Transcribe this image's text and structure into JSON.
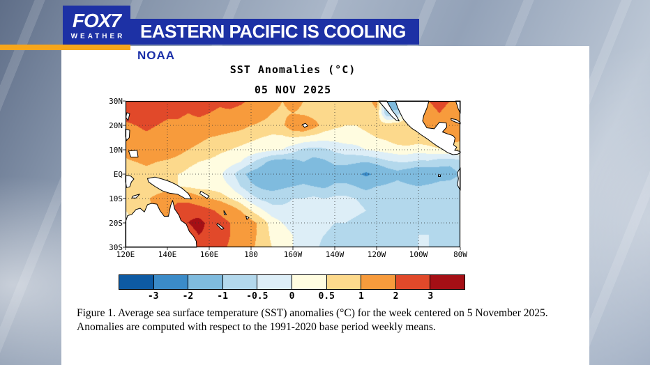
{
  "header": {
    "station_name": "FOX7",
    "station_sub": "WEATHER",
    "banner_title": "EASTERN PACIFIC IS COOLING",
    "brand_blue": "#1d31a5",
    "accent_yellow": "#f7a61b"
  },
  "card": {
    "source_label": "NOAA",
    "caption": "Figure 1. Average sea surface temperature (SST) anomalies (°C) for the week centered on 5 November 2025.  Anomalies are computed with respect to the 1991-2020 base period weekly means."
  },
  "chart_data": {
    "type": "heatmap",
    "title": "SST Anomalies (°C)",
    "date_label": "05 NOV 2025",
    "x_ticks": [
      "120E",
      "140E",
      "160E",
      "180",
      "160W",
      "140W",
      "120W",
      "100W",
      "80W"
    ],
    "y_ticks": [
      "30N",
      "20N",
      "10N",
      "EQ",
      "10S",
      "20S",
      "30S"
    ],
    "lon_ticks": [
      120,
      140,
      160,
      180,
      200,
      220,
      240,
      260,
      280
    ],
    "lat_ticks": [
      30,
      20,
      10,
      0,
      -10,
      -20,
      -30
    ],
    "lon_range": [
      120,
      280
    ],
    "lat_range": [
      -30,
      30
    ],
    "colorbar": {
      "levels": [
        -3,
        -2,
        -1,
        -0.5,
        0,
        0.5,
        1,
        2,
        3
      ],
      "labels": [
        "-3",
        "-2",
        "-1",
        "-0.5",
        "0",
        "0.5",
        "1",
        "2",
        "3"
      ],
      "colors": [
        "#0d5aa3",
        "#3b8bc8",
        "#7fbbde",
        "#b3d8ec",
        "#ddeef7",
        "#fffce0",
        "#fcd98c",
        "#f79b3c",
        "#e1492a",
        "#a50f15"
      ]
    },
    "grid": {
      "lon_start": 120,
      "lon_step": 5,
      "lat_start": 30,
      "lat_step": -5,
      "values": [
        [
          2.6,
          2.8,
          2.8,
          2.6,
          2.4,
          2.6,
          2.4,
          2.6,
          2.4,
          2.2,
          2.4,
          2.2,
          1.8,
          1.5,
          1.2,
          1.0,
          1.2,
          1.0,
          0.8,
          0.8,
          1.0,
          0.8,
          0.6,
          0.8,
          1.2,
          -1.2,
          -1.5,
          0.8,
          1.2,
          2.0,
          2.2,
          2.0,
          1.8
        ],
        [
          2.4,
          2.6,
          2.6,
          2.4,
          2.2,
          2.2,
          2.0,
          2.2,
          2.0,
          1.8,
          1.8,
          1.6,
          1.4,
          1.2,
          1.0,
          0.9,
          1.0,
          0.9,
          0.8,
          0.7,
          0.8,
          0.7,
          0.6,
          0.7,
          0.9,
          -1.0,
          -0.8,
          0.8,
          1.0,
          1.8,
          2.0,
          1.8,
          1.6
        ],
        [
          1.8,
          2.0,
          2.2,
          2.0,
          1.8,
          1.8,
          1.6,
          1.6,
          1.5,
          1.4,
          1.3,
          1.2,
          1.0,
          0.9,
          0.8,
          0.9,
          1.4,
          1.6,
          1.2,
          0.8,
          0.6,
          0.5,
          0.5,
          0.6,
          0.7,
          0.8,
          0.9,
          0.8,
          0.8,
          1.2,
          1.4,
          1.4,
          1.3
        ],
        [
          1.5,
          1.6,
          1.8,
          1.6,
          1.5,
          1.4,
          1.2,
          1.1,
          1.0,
          0.9,
          0.8,
          0.7,
          0.6,
          0.5,
          0.4,
          0.4,
          0.5,
          0.4,
          0.3,
          0.2,
          0.2,
          0.3,
          0.3,
          0.4,
          0.5,
          0.6,
          0.8,
          0.9,
          0.8,
          0.9,
          1.2,
          1.3,
          1.2
        ],
        [
          1.2,
          1.4,
          1.6,
          1.5,
          1.4,
          1.2,
          1.0,
          0.9,
          0.8,
          0.6,
          0.5,
          0.4,
          0.3,
          0.2,
          0.1,
          0.0,
          -0.3,
          -0.6,
          -0.7,
          -0.6,
          -0.4,
          -0.3,
          -0.2,
          0.0,
          0.1,
          0.2,
          0.3,
          0.3,
          0.2,
          0.3,
          0.4,
          0.5,
          0.6
        ],
        [
          0.9,
          1.0,
          1.1,
          1.0,
          0.9,
          0.8,
          0.6,
          0.5,
          0.4,
          0.3,
          0.2,
          0.0,
          -0.4,
          -0.8,
          -1.2,
          -1.3,
          -1.2,
          -1.0,
          -1.2,
          -1.1,
          -0.9,
          -0.8,
          -0.9,
          -1.0,
          -0.8,
          -0.6,
          -0.5,
          -0.5,
          -0.6,
          -0.6,
          -0.8,
          -0.9,
          -0.7
        ],
        [
          0.6,
          0.7,
          0.8,
          0.7,
          0.6,
          0.5,
          0.4,
          0.3,
          0.2,
          0.1,
          -0.3,
          -0.8,
          -1.2,
          -1.4,
          -1.6,
          -1.8,
          -1.6,
          -1.4,
          -1.6,
          -1.5,
          -1.3,
          -1.5,
          -1.8,
          -2.2,
          -1.8,
          -1.4,
          -1.2,
          -1.4,
          -1.6,
          -1.5,
          -1.3,
          -1.2,
          -1.0
        ],
        [
          0.5,
          0.6,
          0.7,
          0.6,
          0.6,
          0.5,
          0.4,
          0.3,
          0.3,
          0.2,
          0.0,
          -0.5,
          -0.9,
          -1.1,
          -1.2,
          -1.1,
          -1.0,
          -0.9,
          -1.0,
          -1.1,
          -0.9,
          -0.8,
          -1.0,
          -1.2,
          -1.0,
          -0.9,
          -0.8,
          -0.9,
          -1.0,
          -0.9,
          -0.8,
          -0.8,
          -0.7
        ],
        [
          0.6,
          0.7,
          0.9,
          1.2,
          1.6,
          1.8,
          1.6,
          1.2,
          1.0,
          0.8,
          0.5,
          0.2,
          -0.3,
          -0.6,
          -0.7,
          -0.6,
          -0.5,
          -0.5,
          -0.4,
          -0.5,
          -0.4,
          -0.4,
          -0.5,
          -0.6,
          -0.5,
          -0.5,
          -0.6,
          -0.7,
          -0.7,
          -0.6,
          -0.7,
          -0.7,
          -0.6
        ],
        [
          0.5,
          0.6,
          0.8,
          1.2,
          1.8,
          2.4,
          2.8,
          2.6,
          2.2,
          1.8,
          1.4,
          1.0,
          0.5,
          0.1,
          -0.3,
          -0.4,
          -0.4,
          -0.3,
          -0.3,
          -0.2,
          -0.3,
          -0.3,
          -0.4,
          -0.5,
          -0.6,
          -0.6,
          -0.7,
          -0.7,
          -0.6,
          -0.6,
          -0.7,
          -0.8,
          -0.7
        ],
        [
          0.4,
          0.5,
          0.7,
          1.0,
          1.5,
          2.2,
          3.0,
          3.3,
          2.8,
          2.4,
          2.0,
          1.6,
          1.2,
          0.8,
          0.3,
          0.0,
          -0.2,
          -0.3,
          -0.3,
          -0.4,
          -0.5,
          -0.5,
          -0.6,
          -0.7,
          -0.7,
          -0.8,
          -0.8,
          -0.7,
          -0.6,
          -0.6,
          -0.6,
          -0.7,
          -0.6
        ],
        [
          0.4,
          0.4,
          0.6,
          0.8,
          1.2,
          1.8,
          2.6,
          3.0,
          2.8,
          2.4,
          2.0,
          1.6,
          1.2,
          0.8,
          0.4,
          0.2,
          0.0,
          -0.2,
          -0.4,
          -0.5,
          -0.6,
          -0.6,
          -0.7,
          -0.8,
          -0.8,
          -0.8,
          -0.7,
          -0.6,
          -0.5,
          -0.5,
          -0.6,
          -0.6,
          -0.5
        ],
        [
          0.3,
          0.4,
          0.5,
          0.7,
          1.0,
          1.4,
          2.0,
          2.4,
          2.4,
          2.2,
          1.9,
          1.5,
          1.1,
          0.8,
          0.5,
          0.2,
          0.0,
          -0.2,
          -0.4,
          -0.6,
          -0.7,
          -0.8,
          -0.8,
          -0.9,
          -0.8,
          -0.8,
          -0.7,
          -0.6,
          -0.5,
          -0.5,
          -0.6,
          -0.6,
          -0.5
        ]
      ]
    },
    "land": [
      {
        "name": "australia",
        "pts": [
          [
            120,
            -19.5
          ],
          [
            121,
            -17
          ],
          [
            123,
            -16.5
          ],
          [
            125,
            -14.5
          ],
          [
            127,
            -14
          ],
          [
            129,
            -15.5
          ],
          [
            130.5,
            -12.5
          ],
          [
            132.5,
            -12
          ],
          [
            135,
            -12.3
          ],
          [
            136.5,
            -15
          ],
          [
            138.5,
            -17.3
          ],
          [
            140.5,
            -17.3
          ],
          [
            141.5,
            -13
          ],
          [
            142.5,
            -10.8
          ],
          [
            143.5,
            -14.3
          ],
          [
            145.5,
            -16.8
          ],
          [
            146.5,
            -19
          ],
          [
            149,
            -20.5
          ],
          [
            150.5,
            -23.5
          ],
          [
            152.5,
            -25.5
          ],
          [
            153.8,
            -27.5
          ],
          [
            154,
            -30
          ],
          [
            120,
            -30
          ]
        ]
      },
      {
        "name": "new-guinea",
        "pts": [
          [
            130.5,
            -1.8
          ],
          [
            134,
            -1.2
          ],
          [
            137.5,
            -2
          ],
          [
            141,
            -3
          ],
          [
            144,
            -4.2
          ],
          [
            147,
            -5.8
          ],
          [
            150,
            -8
          ],
          [
            151.5,
            -10.2
          ],
          [
            148.5,
            -10
          ],
          [
            145,
            -8.3
          ],
          [
            141,
            -7.8
          ],
          [
            137.5,
            -6.8
          ],
          [
            134,
            -5
          ],
          [
            131,
            -3.2
          ]
        ]
      },
      {
        "name": "sulawesi",
        "pts": [
          [
            120,
            -0.5
          ],
          [
            122.5,
            -0.8
          ],
          [
            124,
            -2
          ],
          [
            122.8,
            -3.2
          ],
          [
            122,
            -5.2
          ],
          [
            120.5,
            -5.5
          ],
          [
            120,
            -3
          ]
        ]
      },
      {
        "name": "timor",
        "pts": [
          [
            123.5,
            -9
          ],
          [
            126.8,
            -8.2
          ],
          [
            125,
            -9.8
          ],
          [
            123,
            -9.8
          ]
        ]
      },
      {
        "name": "philippines-luzon",
        "pts": [
          [
            120,
            18.5
          ],
          [
            122,
            18
          ],
          [
            121.8,
            15
          ],
          [
            120.5,
            13.8
          ],
          [
            120,
            15.5
          ]
        ]
      },
      {
        "name": "philippines-mindanao",
        "pts": [
          [
            121.5,
            9.5
          ],
          [
            125.5,
            9.8
          ],
          [
            126,
            7
          ],
          [
            122.5,
            7
          ]
        ]
      },
      {
        "name": "taiwan",
        "pts": [
          [
            120.6,
            25.2
          ],
          [
            122,
            24.8
          ],
          [
            121.2,
            22
          ],
          [
            120.2,
            23.3
          ]
        ]
      },
      {
        "name": "hawaii",
        "pts": [
          [
            204.5,
            20.3
          ],
          [
            206,
            20.8
          ],
          [
            207.2,
            19.8
          ],
          [
            205.5,
            19.2
          ]
        ]
      },
      {
        "name": "baja-california",
        "pts": [
          [
            241,
            30
          ],
          [
            243,
            28
          ],
          [
            245.5,
            25.5
          ],
          [
            247.5,
            23.5
          ],
          [
            249.5,
            22
          ],
          [
            250.8,
            21.8
          ],
          [
            249.5,
            23.8
          ],
          [
            247.5,
            26
          ],
          [
            245.8,
            28.5
          ],
          [
            244.8,
            30
          ]
        ]
      },
      {
        "name": "mexico-central-america",
        "pts": [
          [
            249,
            30
          ],
          [
            265,
            30
          ],
          [
            264,
            27
          ],
          [
            262.5,
            24
          ],
          [
            262,
            21.8
          ],
          [
            264,
            19
          ],
          [
            267.5,
            18.6
          ],
          [
            270,
            21.3
          ],
          [
            273.3,
            21
          ],
          [
            273.5,
            19.3
          ],
          [
            271.5,
            17.3
          ],
          [
            274,
            16.5
          ],
          [
            276.5,
            15.8
          ],
          [
            277.5,
            14.8
          ],
          [
            276.8,
            12
          ],
          [
            278.3,
            11
          ],
          [
            277.3,
            9.8
          ],
          [
            279.5,
            9.4
          ],
          [
            280,
            9.2
          ],
          [
            280,
            8.8
          ],
          [
            278.8,
            8.2
          ],
          [
            276.5,
            8
          ],
          [
            274,
            8.8
          ],
          [
            271.5,
            10.2
          ],
          [
            269,
            11.5
          ],
          [
            266.5,
            13
          ],
          [
            264,
            14.6
          ],
          [
            261.5,
            16
          ],
          [
            259,
            17.6
          ],
          [
            256.8,
            18.8
          ],
          [
            254.8,
            20.5
          ],
          [
            252.8,
            22.5
          ],
          [
            251.3,
            25
          ],
          [
            250,
            27.5
          ]
        ]
      },
      {
        "name": "florida",
        "pts": [
          [
            277.8,
            30
          ],
          [
            280,
            30
          ],
          [
            280,
            25
          ],
          [
            279,
            26.8
          ],
          [
            278.4,
            28.5
          ]
        ]
      },
      {
        "name": "cuba",
        "pts": [
          [
            275.5,
            22.8
          ],
          [
            278,
            22.4
          ],
          [
            280,
            21.2
          ],
          [
            280,
            20.6
          ],
          [
            277,
            21.6
          ],
          [
            275.7,
            22.2
          ]
        ]
      },
      {
        "name": "south-america",
        "pts": [
          [
            280,
            2.6
          ],
          [
            278.6,
            0.6
          ],
          [
            279.1,
            -1.8
          ],
          [
            278.6,
            -4.4
          ],
          [
            280,
            -6.6
          ]
        ]
      },
      {
        "name": "solomon-islands",
        "pts": [
          [
            156,
            -7
          ],
          [
            160,
            -9
          ],
          [
            159,
            -10
          ],
          [
            155.5,
            -8
          ]
        ]
      },
      {
        "name": "new-caledonia",
        "pts": [
          [
            164,
            -20.2
          ],
          [
            167,
            -22.2
          ],
          [
            166,
            -22.7
          ],
          [
            163.6,
            -20.7
          ]
        ]
      },
      {
        "name": "fiji",
        "pts": [
          [
            177.5,
            -17.2
          ],
          [
            179,
            -17.8
          ],
          [
            178,
            -18.6
          ]
        ]
      },
      {
        "name": "vanuatu",
        "pts": [
          [
            167,
            -15
          ],
          [
            168.2,
            -16.6
          ],
          [
            167.2,
            -16.6
          ]
        ]
      },
      {
        "name": "galapagos",
        "pts": [
          [
            269.5,
            -0.3
          ],
          [
            270.5,
            -0.3
          ],
          [
            270.5,
            -1
          ],
          [
            269.5,
            -1
          ]
        ]
      }
    ]
  }
}
